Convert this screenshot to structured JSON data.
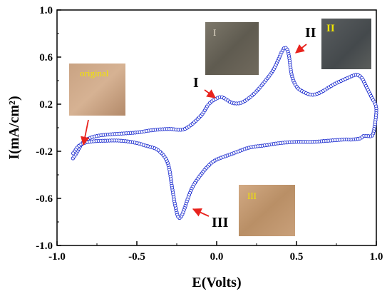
{
  "chart_data": {
    "type": "line",
    "title": "",
    "xlabel": "E(Volts)",
    "ylabel": "I(mA/cm²)",
    "xlim": [
      -1.0,
      1.0
    ],
    "ylim": [
      -1.0,
      1.0
    ],
    "xticks": [
      "-1.0",
      "-0.5",
      "0.0",
      "0.5",
      "1.0"
    ],
    "yticks": [
      "1.0",
      "0.6",
      "0.2",
      "-0.2",
      "-0.6",
      "-1.0"
    ],
    "xtick_values": [
      -1.0,
      -0.5,
      0.0,
      0.5,
      1.0
    ],
    "ytick_values": [
      1.0,
      0.6,
      0.2,
      -0.2,
      -0.6,
      -1.0
    ],
    "grid": false,
    "series": [
      {
        "color": "#1f2fd0",
        "marker": "open-circle",
        "x": [
          -0.9,
          -0.88,
          -0.86,
          -0.84,
          -0.8,
          -0.75,
          -0.7,
          -0.6,
          -0.5,
          -0.4,
          -0.3,
          -0.2,
          -0.1,
          -0.05,
          0.0,
          0.03,
          0.06,
          0.1,
          0.15,
          0.2,
          0.25,
          0.3,
          0.35,
          0.38,
          0.41,
          0.43,
          0.45,
          0.47,
          0.5,
          0.55,
          0.6,
          0.65,
          0.7,
          0.75,
          0.8,
          0.85,
          0.88,
          0.91,
          0.94,
          0.97,
          1.0,
          0.98,
          0.95,
          0.92,
          0.9,
          0.85,
          0.8,
          0.7,
          0.6,
          0.5,
          0.4,
          0.3,
          0.2,
          0.1,
          0.0,
          -0.05,
          -0.1,
          -0.15,
          -0.18,
          -0.2,
          -0.22,
          -0.24,
          -0.26,
          -0.28,
          -0.3,
          -0.33,
          -0.38,
          -0.45,
          -0.5,
          -0.6,
          -0.7,
          -0.8,
          -0.86,
          -0.9
        ],
        "y": [
          -0.26,
          -0.22,
          -0.17,
          -0.13,
          -0.09,
          -0.07,
          -0.06,
          -0.05,
          -0.04,
          -0.02,
          -0.01,
          -0.01,
          0.1,
          0.2,
          0.25,
          0.26,
          0.24,
          0.21,
          0.21,
          0.25,
          0.31,
          0.39,
          0.48,
          0.56,
          0.65,
          0.68,
          0.63,
          0.45,
          0.35,
          0.3,
          0.28,
          0.3,
          0.34,
          0.38,
          0.41,
          0.44,
          0.45,
          0.42,
          0.34,
          0.26,
          0.16,
          -0.05,
          -0.07,
          -0.07,
          -0.09,
          -0.1,
          -0.1,
          -0.11,
          -0.12,
          -0.12,
          -0.13,
          -0.15,
          -0.17,
          -0.22,
          -0.27,
          -0.32,
          -0.4,
          -0.5,
          -0.6,
          -0.68,
          -0.75,
          -0.76,
          -0.66,
          -0.5,
          -0.33,
          -0.24,
          -0.18,
          -0.15,
          -0.13,
          -0.11,
          -0.11,
          -0.12,
          -0.15,
          -0.22
        ]
      }
    ],
    "annotations": [
      {
        "label": "I",
        "x": 0.03,
        "y": 0.25
      },
      {
        "label": "II",
        "x": 0.43,
        "y": 0.66
      },
      {
        "label": "III",
        "x": -0.23,
        "y": -0.75
      },
      {
        "label": "original",
        "x": -0.86,
        "y": -0.17
      }
    ]
  },
  "insets": [
    {
      "label": "original",
      "label_color": "#f2e600",
      "tone": "#c9a383"
    },
    {
      "label": "I",
      "label_color": "#e9e0ce",
      "tone": "#6f6a5e"
    },
    {
      "label": "II",
      "label_color": "#f2e600",
      "tone": "#4f5356"
    },
    {
      "label": "III",
      "label_color": "#f2e600",
      "tone": "#c49a73"
    }
  ]
}
